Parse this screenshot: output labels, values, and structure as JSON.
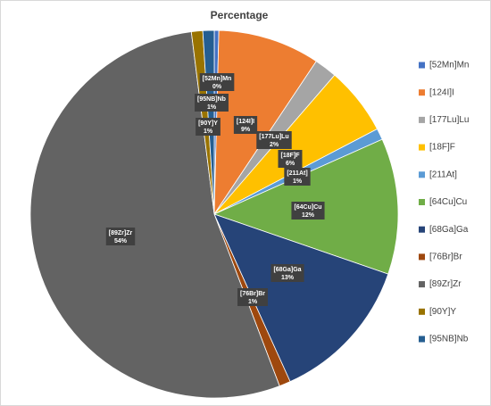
{
  "chart_data": {
    "type": "pie",
    "title": "Percentage",
    "categories": [
      "[52Mn]Mn",
      "[124I]I",
      "[177Lu]Lu",
      "[18F]F",
      "[211At]",
      "[64Cu]Cu",
      "[68Ga]Ga",
      "[76Br]Br",
      "[89Zr]Zr",
      "[90Y]Y",
      "[95NB]Nb"
    ],
    "values": [
      0.4,
      9,
      2,
      6,
      1,
      12,
      13,
      1,
      54,
      1,
      1
    ],
    "value_labels": [
      "0%",
      "9%",
      "2%",
      "6%",
      "1%",
      "12%",
      "13%",
      "1%",
      "54%",
      "1%",
      "1%"
    ],
    "colors": [
      "#4472c4",
      "#ed7d31",
      "#a5a5a5",
      "#ffc000",
      "#5b9bd5",
      "#70ad47",
      "#264478",
      "#9e480e",
      "#636363",
      "#997300",
      "#255e91"
    ],
    "legend": "right"
  }
}
